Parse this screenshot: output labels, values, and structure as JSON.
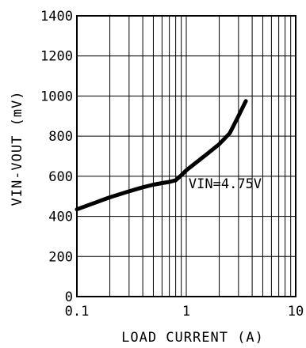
{
  "chart_data": {
    "type": "line",
    "xlabel": "LOAD CURRENT (A)",
    "ylabel": "VIN-VOUT (mV)",
    "x_scale": "log",
    "xlim": [
      0.1,
      10
    ],
    "ylim": [
      0,
      1400
    ],
    "x_ticks": [
      0.1,
      1,
      10
    ],
    "x_tick_labels": [
      "0.1",
      "1",
      "10"
    ],
    "y_ticks": [
      0,
      200,
      400,
      600,
      800,
      1000,
      1200,
      1400
    ],
    "y_tick_labels": [
      "0",
      "200",
      "400",
      "600",
      "800",
      "1000",
      "1200",
      "1400"
    ],
    "grid": true,
    "series": [
      {
        "x": [
          0.1,
          0.15,
          0.2,
          0.3,
          0.4,
          0.5,
          0.6,
          0.7,
          0.8,
          0.9,
          1.0,
          1.5,
          2.0,
          2.5,
          3.0,
          3.5
        ],
        "y": [
          435,
          470,
          495,
          525,
          545,
          558,
          566,
          572,
          580,
          605,
          630,
          705,
          760,
          815,
          900,
          975
        ]
      }
    ],
    "annotations": [
      {
        "text": "VIN=4.75V",
        "x": 1.05,
        "y": 595
      }
    ],
    "line_color": "#000000"
  }
}
